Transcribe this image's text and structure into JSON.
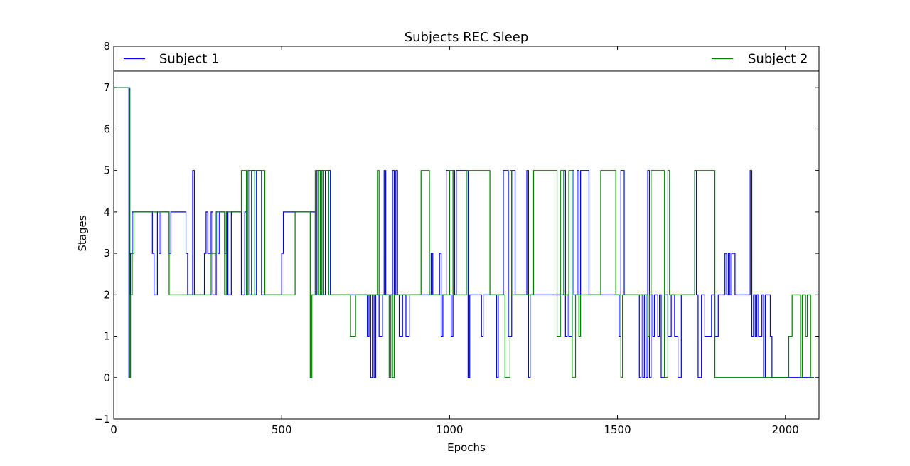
{
  "chart_data": {
    "type": "line",
    "title": "Subjects REC Sleep",
    "xlabel": "Epochs",
    "ylabel": "Stages",
    "xlim": [
      0,
      2100
    ],
    "ylim": [
      -1,
      8
    ],
    "x_ticks": [
      0,
      500,
      1000,
      1500,
      2000
    ],
    "y_ticks": [
      -1,
      0,
      1,
      2,
      3,
      4,
      5,
      6,
      7,
      8
    ],
    "grid": false,
    "legend": "top, split left/right",
    "series": [
      {
        "name": "Subject 1",
        "color": "#0000ff",
        "step": "post",
        "x": [
          0,
          45,
          47,
          48,
          50,
          55,
          60,
          100,
          115,
          120,
          130,
          135,
          140,
          160,
          165,
          170,
          210,
          215,
          220,
          235,
          240,
          250,
          270,
          275,
          280,
          290,
          295,
          305,
          310,
          315,
          330,
          335,
          340,
          350,
          355,
          360,
          380,
          390,
          395,
          400,
          405,
          410,
          420,
          425,
          440,
          455,
          460,
          500,
          505,
          510,
          530,
          540,
          590,
          600,
          605,
          615,
          620,
          625,
          630,
          645,
          650,
          700,
          750,
          755,
          760,
          765,
          770,
          775,
          780,
          790,
          800,
          805,
          810,
          830,
          835,
          840,
          845,
          850,
          860,
          870,
          880,
          900,
          930,
          945,
          950,
          970,
          975,
          980,
          990,
          1000,
          1005,
          1010,
          1015,
          1020,
          1055,
          1060,
          1095,
          1100,
          1140,
          1145,
          1160,
          1175,
          1185,
          1195,
          1230,
          1235,
          1240,
          1335,
          1340,
          1345,
          1350,
          1355,
          1365,
          1370,
          1380,
          1385,
          1390,
          1410,
          1415,
          1450,
          1500,
          1505,
          1510,
          1520,
          1560,
          1565,
          1570,
          1575,
          1580,
          1585,
          1590,
          1595,
          1600,
          1605,
          1610,
          1620,
          1625,
          1630,
          1640,
          1650,
          1660,
          1665,
          1670,
          1680,
          1690,
          1730,
          1735,
          1740,
          1750,
          1760,
          1780,
          1790,
          1800,
          1805,
          1815,
          1820,
          1825,
          1830,
          1835,
          1840,
          1850,
          1860,
          1895,
          1900,
          1905,
          1910,
          1915,
          1920,
          1930,
          1935,
          1940,
          1950,
          1955,
          1960,
          1970,
          2085
        ],
        "y": [
          7,
          0,
          7,
          2,
          3,
          4,
          4,
          4,
          3,
          2,
          4,
          3,
          4,
          4,
          3,
          4,
          4,
          3,
          2,
          5,
          2,
          2,
          3,
          4,
          3,
          4,
          2,
          4,
          3,
          4,
          3,
          4,
          2,
          4,
          4,
          4,
          2,
          4,
          2,
          5,
          2,
          5,
          2,
          5,
          2,
          2,
          2,
          3,
          4,
          4,
          4,
          4,
          4,
          2,
          5,
          2,
          5,
          2,
          5,
          2,
          2,
          2,
          2,
          1,
          2,
          0,
          2,
          0,
          2,
          1,
          2,
          5,
          2,
          5,
          2,
          5,
          2,
          1,
          2,
          1,
          2,
          2,
          2,
          3,
          2,
          3,
          1,
          2,
          5,
          2,
          1,
          5,
          2,
          5,
          0,
          2,
          1,
          2,
          0,
          2,
          5,
          1,
          5,
          2,
          5,
          0,
          2,
          2,
          5,
          1,
          2,
          1,
          5,
          2,
          5,
          2,
          5,
          5,
          2,
          2,
          2,
          1,
          5,
          2,
          2,
          0,
          2,
          0,
          2,
          0,
          5,
          0,
          2,
          1,
          2,
          1,
          2,
          0,
          2,
          1,
          2,
          2,
          1,
          0,
          2,
          5,
          2,
          0,
          2,
          1,
          2,
          1,
          2,
          2,
          2,
          3,
          2,
          3,
          2,
          3,
          2,
          2,
          5,
          1,
          2,
          1,
          2,
          1,
          2,
          0,
          2,
          2,
          1,
          0,
          0,
          0
        ]
      },
      {
        "name": "Subject 2",
        "color": "#008000",
        "step": "post",
        "x": [
          0,
          47,
          50,
          55,
          60,
          100,
          130,
          165,
          170,
          210,
          270,
          280,
          290,
          305,
          310,
          330,
          335,
          345,
          350,
          360,
          380,
          395,
          400,
          410,
          420,
          450,
          455,
          500,
          530,
          540,
          580,
          585,
          590,
          600,
          610,
          615,
          620,
          625,
          640,
          650,
          700,
          705,
          720,
          770,
          785,
          790,
          800,
          820,
          825,
          830,
          835,
          850,
          900,
          915,
          920,
          940,
          945,
          1000,
          1010,
          1015,
          1050,
          1055,
          1120,
          1150,
          1160,
          1165,
          1180,
          1185,
          1200,
          1240,
          1250,
          1310,
          1320,
          1330,
          1340,
          1355,
          1365,
          1375,
          1385,
          1390,
          1400,
          1450,
          1495,
          1510,
          1515,
          1520,
          1575,
          1590,
          1595,
          1600,
          1640,
          1650,
          1655,
          1660,
          1690,
          1700,
          1730,
          1790,
          1800,
          1890,
          1895,
          1900,
          1950,
          1960,
          2010,
          2020,
          2040,
          2045,
          2050,
          2060,
          2065,
          2070,
          2075,
          2085
        ],
        "y": [
          7,
          0,
          2,
          3,
          4,
          4,
          4,
          2,
          2,
          2,
          2,
          2,
          3,
          4,
          4,
          2,
          4,
          4,
          4,
          4,
          5,
          2,
          5,
          2,
          5,
          2,
          2,
          2,
          2,
          4,
          4,
          0,
          2,
          5,
          2,
          5,
          2,
          5,
          2,
          2,
          2,
          1,
          2,
          2,
          5,
          2,
          2,
          0,
          2,
          0,
          2,
          2,
          2,
          5,
          5,
          2,
          2,
          5,
          2,
          2,
          5,
          5,
          2,
          2,
          2,
          0,
          5,
          2,
          2,
          2,
          5,
          5,
          1,
          5,
          2,
          5,
          0,
          2,
          1,
          2,
          2,
          5,
          2,
          0,
          2,
          2,
          2,
          1,
          2,
          5,
          0,
          5,
          2,
          2,
          2,
          2,
          5,
          0,
          0,
          0,
          0,
          0,
          0,
          0,
          1,
          2,
          2,
          0,
          2,
          1,
          2,
          2,
          0,
          0
        ]
      }
    ]
  }
}
